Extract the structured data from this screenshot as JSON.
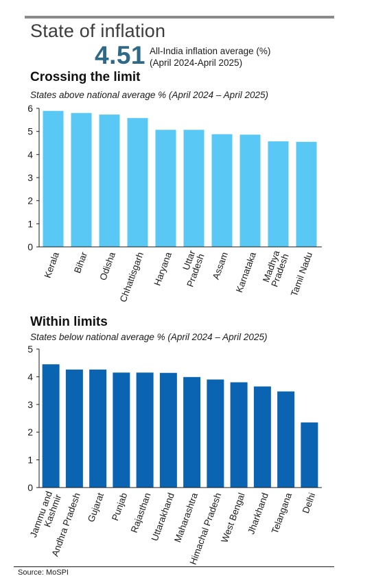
{
  "header": {
    "title": "State of inflation",
    "average_value": "4.51",
    "average_label_line1": "All-India inflation average (%)",
    "average_label_line2": "(April 2024-April 2025)"
  },
  "footer": {
    "source": "Source: MoSPI"
  },
  "colors": {
    "above_bars": "#5ac8f4",
    "below_bars": "#0a64b2",
    "rule": "#8a8a8a",
    "avg_value": "#2e6a88"
  },
  "chart_data": [
    {
      "type": "bar",
      "title": "Crossing the limit",
      "subtitle": "States above national average % (April 2024 – April 2025)",
      "xlabel": "",
      "ylabel": "",
      "ylim": [
        0,
        6
      ],
      "yticks": [
        0,
        1,
        2,
        3,
        4,
        5,
        6
      ],
      "grid": false,
      "categories": [
        "Kerala",
        "Bihar",
        "Odisha",
        "Chhattisgarh",
        "Haryana",
        "Uttar Pradesh",
        "Assam",
        "Karnataka",
        "Madhya Pradesh",
        "Tamil Nadu"
      ],
      "category_lines": [
        [
          "Kerala"
        ],
        [
          "Bihar"
        ],
        [
          "Odisha"
        ],
        [
          "Chhattisgarh"
        ],
        [
          "Haryana"
        ],
        [
          "Uttar",
          "Pradesh"
        ],
        [
          "Assam"
        ],
        [
          "Karnataka"
        ],
        [
          "Madhya",
          "Pradesh"
        ],
        [
          "Tamil Nadu"
        ]
      ],
      "values": [
        5.89,
        5.8,
        5.73,
        5.58,
        5.07,
        5.07,
        4.88,
        4.86,
        4.57,
        4.55
      ]
    },
    {
      "type": "bar",
      "title": "Within limits",
      "subtitle": "States below national average % (April 2024 – April 2025)",
      "xlabel": "",
      "ylabel": "",
      "ylim": [
        0,
        5
      ],
      "yticks": [
        0,
        1,
        2,
        3,
        4,
        5
      ],
      "grid": false,
      "categories": [
        "Jammu and Kashmir",
        "Andhra Pradesh",
        "Gujarat",
        "Punjab",
        "Rajasthan",
        "Uttarakhand",
        "Maharashtra",
        "Himachal Pradesh",
        "West Bengal",
        "Jharkhand",
        "Telangana",
        "Delhi"
      ],
      "category_lines": [
        [
          "Jammu and",
          "Kashmir"
        ],
        [
          "Andhra Pradesh"
        ],
        [
          "Gujarat"
        ],
        [
          "Punjab"
        ],
        [
          "Rajasthan"
        ],
        [
          "Uttarakhand"
        ],
        [
          "Maharashtra"
        ],
        [
          "Himachal Pradesh"
        ],
        [
          "West Bengal"
        ],
        [
          "Jharkhand"
        ],
        [
          "Telangana"
        ],
        [
          "Delhi"
        ]
      ],
      "values": [
        4.45,
        4.26,
        4.26,
        4.15,
        4.15,
        4.14,
        3.99,
        3.9,
        3.8,
        3.65,
        3.47,
        2.35
      ]
    }
  ]
}
